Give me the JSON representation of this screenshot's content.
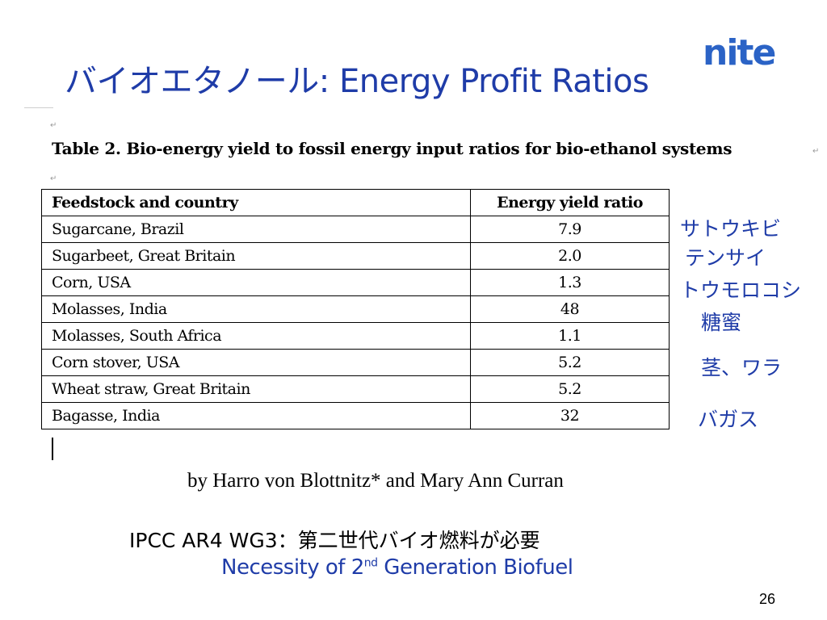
{
  "slide": {
    "title": "バイオエタノール: Energy Profit Ratios",
    "logo": "nite",
    "table_title": "Table 2. Bio-energy yield to fossil energy input ratios for bio-ethanol systems",
    "columns": [
      "Feedstock and country",
      "Energy yield ratio"
    ],
    "rows": [
      {
        "feedstock": "Sugarcane, Brazil",
        "ratio": "7.9"
      },
      {
        "feedstock": "Sugarbeet, Great Britain",
        "ratio": "2.0"
      },
      {
        "feedstock": "Corn, USA",
        "ratio": "1.3"
      },
      {
        "feedstock": "Molasses, India",
        "ratio": "48"
      },
      {
        "feedstock": "Molasses, South Africa",
        "ratio": "1.1"
      },
      {
        "feedstock": "Corn stover, USA",
        "ratio": "5.2"
      },
      {
        "feedstock": "Wheat straw, Great Britain",
        "ratio": "5.2"
      },
      {
        "feedstock": "Bagasse, India",
        "ratio": "32"
      }
    ],
    "japanese_labels": [
      "サトウキビ",
      "テンサイ",
      "トウモロコシ",
      "糖蜜",
      "茎、ワラ",
      "バガス"
    ],
    "byline": "by Harro von Blottnitz* and  Mary Ann Curran",
    "ipcc_note": "IPCC AR4 WG3：第二世代バイオ燃料が必要",
    "necessity": {
      "prefix": "Necessity of 2",
      "sup": "nd",
      "suffix": " Generation Biofuel"
    },
    "page_number": "26",
    "colors": {
      "title_blue": "#1f3ca8",
      "logo_blue": "#2b63c6"
    }
  }
}
